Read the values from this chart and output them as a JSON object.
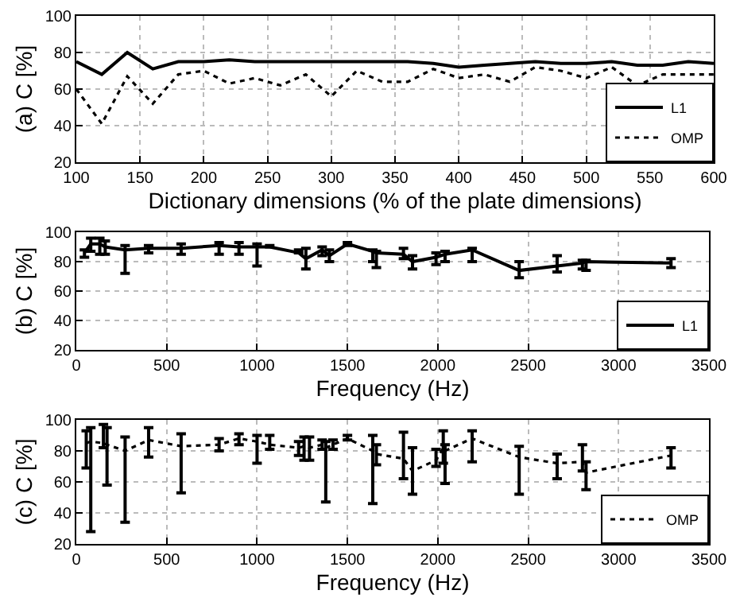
{
  "chart_data": [
    {
      "type": "line",
      "xlabel": "Dictionary dimensions (% of the plate dimensions)",
      "ylabel": "(a) C [%]",
      "x": [
        100,
        120,
        140,
        160,
        180,
        200,
        220,
        240,
        260,
        280,
        300,
        320,
        340,
        360,
        380,
        400,
        420,
        440,
        460,
        480,
        500,
        520,
        540,
        560,
        580,
        600
      ],
      "series": [
        {
          "name": "L1",
          "color": "#000000",
          "line_style": "solid",
          "values": [
            75,
            68,
            80,
            71,
            75,
            75,
            76,
            75,
            75,
            75,
            75,
            75,
            75,
            75,
            74,
            72,
            73,
            74,
            75,
            74,
            74,
            75,
            73,
            73,
            75,
            74
          ]
        },
        {
          "name": "OMP",
          "color": "#000000",
          "line_style": "dotted",
          "values": [
            60,
            41,
            67,
            52,
            68,
            70,
            63,
            66,
            62,
            68,
            56,
            70,
            64,
            64,
            71,
            66,
            68,
            64,
            72,
            70,
            66,
            72,
            62,
            68,
            68,
            68
          ]
        }
      ],
      "xlim": [
        100,
        600
      ],
      "xticks": [
        100,
        150,
        200,
        250,
        300,
        350,
        400,
        450,
        500,
        550,
        600
      ],
      "ylim": [
        20,
        100
      ],
      "yticks": [
        20,
        40,
        60,
        80,
        100
      ],
      "grid": true,
      "legend": "bottom right",
      "marker": "none"
    },
    {
      "type": "line",
      "xlabel": "Frequency (Hz)",
      "ylabel": "(b) C [%]",
      "x": [
        45,
        80,
        130,
        160,
        270,
        400,
        580,
        790,
        900,
        1000,
        1070,
        1230,
        1270,
        1360,
        1400,
        1500,
        1640,
        1660,
        1810,
        1860,
        1990,
        2040,
        2190,
        2450,
        2660,
        2800,
        2820,
        3290
      ],
      "series": [
        {
          "name": "L1",
          "color": "#000000",
          "line_style": "solid",
          "values": [
            86,
            92,
            92,
            90,
            88,
            89,
            89,
            91,
            90,
            90,
            90,
            86,
            82,
            88,
            84,
            92,
            87,
            86,
            85,
            80,
            83,
            85,
            88,
            74,
            77,
            79,
            80,
            79
          ],
          "errors": [
            [
              83,
              88
            ],
            [
              87,
              96
            ],
            [
              85,
              96
            ],
            [
              85,
              94
            ],
            [
              72,
              91
            ],
            [
              86,
              91
            ],
            [
              85,
              92
            ],
            [
              85,
              93
            ],
            [
              85,
              93
            ],
            [
              77,
              92
            ],
            [
              90,
              91
            ],
            [
              86,
              88
            ],
            [
              75,
              89
            ],
            [
              84,
              90
            ],
            [
              80,
              88
            ],
            [
              91,
              93
            ],
            [
              80,
              88
            ],
            [
              76,
              87
            ],
            [
              82,
              89
            ],
            [
              75,
              84
            ],
            [
              78,
              86
            ],
            [
              80,
              87
            ],
            [
              80,
              89
            ],
            [
              69,
              80
            ],
            [
              73,
              84
            ],
            [
              75,
              81
            ],
            [
              74,
              81
            ],
            [
              76,
              82
            ]
          ]
        }
      ],
      "xlim": [
        0,
        3500
      ],
      "xticks": [
        0,
        500,
        1000,
        1500,
        2000,
        2500,
        3000,
        3500
      ],
      "ylim": [
        20,
        100
      ],
      "yticks": [
        20,
        40,
        60,
        80,
        100
      ],
      "grid": true,
      "legend": "bottom right",
      "marker": "none"
    },
    {
      "type": "line",
      "xlabel": "Frequency (Hz)",
      "ylabel": "(c) C [%]",
      "x": [
        55,
        80,
        150,
        170,
        270,
        400,
        580,
        790,
        900,
        1000,
        1070,
        1230,
        1260,
        1290,
        1360,
        1380,
        1420,
        1500,
        1640,
        1660,
        1810,
        1860,
        1990,
        2030,
        2040,
        2190,
        2450,
        2660,
        2800,
        2820,
        3290
      ],
      "series": [
        {
          "name": "OMP",
          "color": "#000000",
          "line_style": "dotted",
          "values": [
            85,
            86,
            85,
            84,
            80,
            87,
            83,
            84,
            88,
            86,
            84,
            82,
            83,
            82,
            84,
            82,
            84,
            88,
            80,
            78,
            75,
            67,
            74,
            82,
            80,
            88,
            76,
            72,
            73,
            66,
            77
          ],
          "errors": [
            [
              69,
              93
            ],
            [
              28,
              95
            ],
            [
              82,
              97
            ],
            [
              58,
              95
            ],
            [
              34,
              89
            ],
            [
              76,
              95
            ],
            [
              53,
              91
            ],
            [
              80,
              88
            ],
            [
              84,
              91
            ],
            [
              72,
              90
            ],
            [
              81,
              90
            ],
            [
              77,
              86
            ],
            [
              74,
              89
            ],
            [
              74,
              89
            ],
            [
              81,
              87
            ],
            [
              47,
              86
            ],
            [
              81,
              87
            ],
            [
              87,
              90
            ],
            [
              46,
              90
            ],
            [
              71,
              84
            ],
            [
              62,
              92
            ],
            [
              52,
              82
            ],
            [
              70,
              81
            ],
            [
              72,
              93
            ],
            [
              59,
              84
            ],
            [
              73,
              93
            ],
            [
              52,
              83
            ],
            [
              62,
              78
            ],
            [
              67,
              84
            ],
            [
              55,
              73
            ],
            [
              69,
              82
            ]
          ]
        }
      ],
      "xlim": [
        0,
        3500
      ],
      "xticks": [
        0,
        500,
        1000,
        1500,
        2000,
        2500,
        3000,
        3500
      ],
      "ylim": [
        20,
        100
      ],
      "yticks": [
        20,
        40,
        60,
        80,
        100
      ],
      "grid": true,
      "legend": "bottom right",
      "marker": "none"
    }
  ]
}
